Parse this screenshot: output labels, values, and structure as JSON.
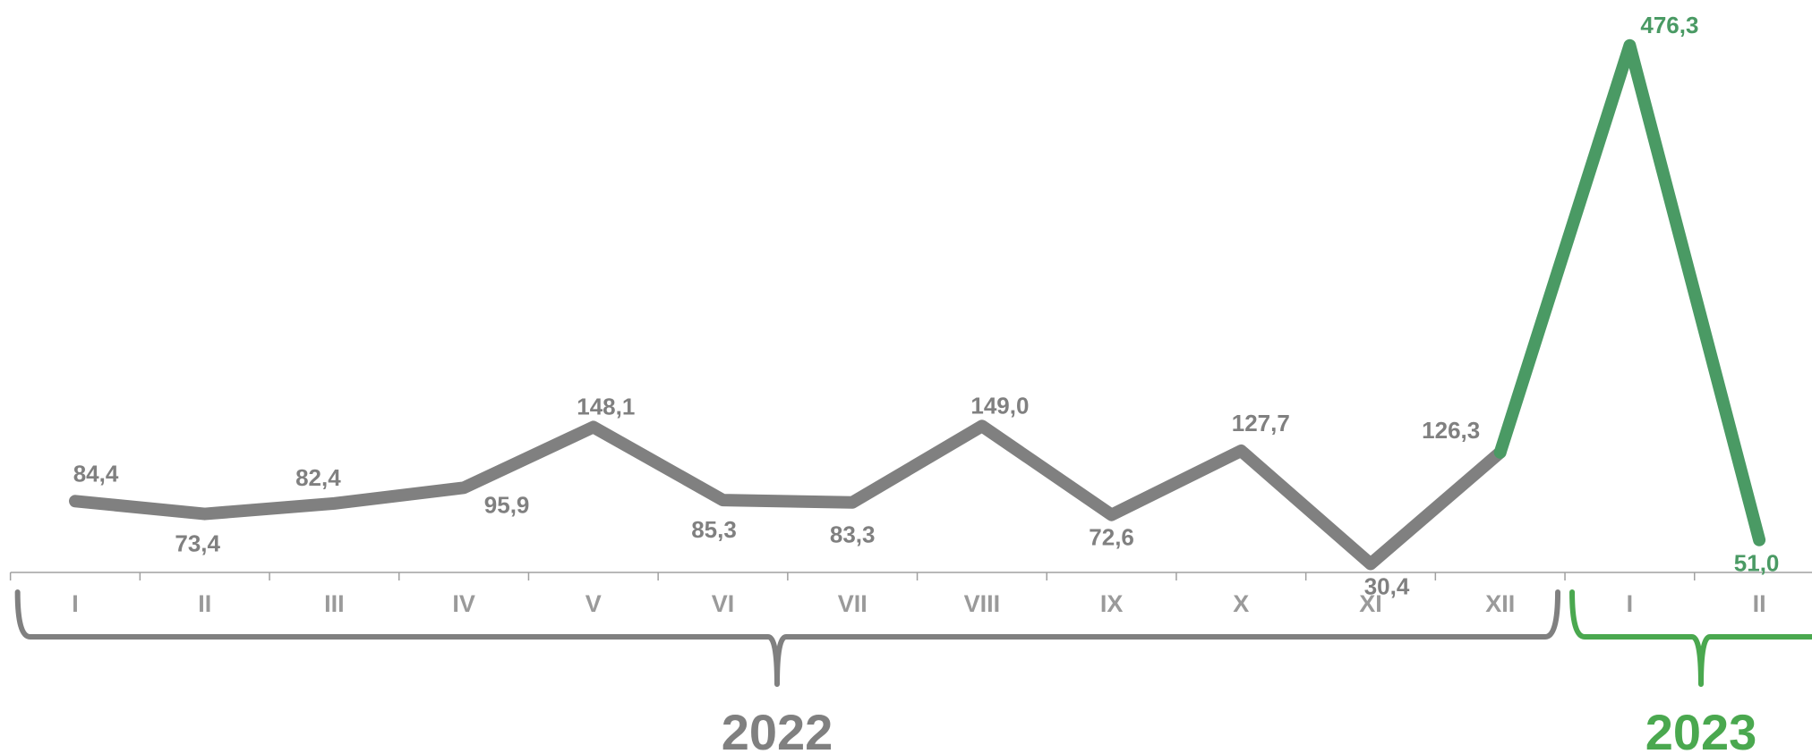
{
  "chart_data": {
    "type": "line",
    "categories": [
      "I",
      "II",
      "III",
      "IV",
      "V",
      "VI",
      "VII",
      "VIII",
      "IX",
      "X",
      "XI",
      "XII",
      "I",
      "II"
    ],
    "values": [
      84.4,
      73.4,
      82.4,
      95.9,
      148.1,
      85.3,
      83.3,
      149.0,
      72.6,
      127.7,
      30.4,
      126.3,
      476.3,
      51.0
    ],
    "data_labels": [
      "84,4",
      "73,4",
      "82,4",
      "95,9",
      "148,1",
      "85,3",
      "83,3",
      "149,0",
      "72,6",
      "127,7",
      "30,4",
      "126,3",
      "476,3",
      "51,0"
    ],
    "groups": [
      {
        "label": "2022",
        "start": 0,
        "end": 11,
        "color": "#808080"
      },
      {
        "label": "2023",
        "start": 12,
        "end": 13,
        "color": "#4aa84f"
      }
    ],
    "series_colors": {
      "2022": "#808080",
      "2023": "#4a9a64"
    },
    "tick_color": "#9a9a9a",
    "axis_color": "#a0a0a0",
    "title": "",
    "xlabel": "",
    "ylabel": "",
    "ylim": [
      0,
      500
    ],
    "grid": false,
    "legend": "none"
  }
}
